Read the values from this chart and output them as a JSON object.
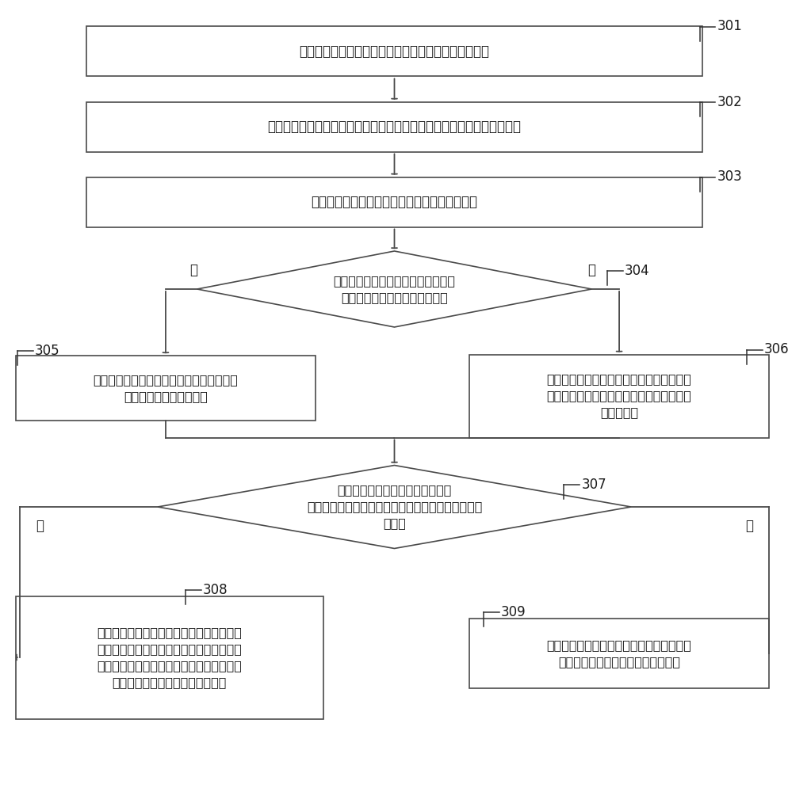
{
  "bg_color": "#ffffff",
  "box_color": "#ffffff",
  "box_edge_color": "#4a4a4a",
  "text_color": "#1a1a1a",
  "arrow_color": "#4a4a4a",
  "node301_text": "第一移动终端以全屏模式或正常显示图片模式显示图片",
  "node302_text": "第一移动终端按照第一设定规则将当前显示的图片分割为至少二个图像块",
  "node303_text": "第一移动终端接收对当前显示的图片的拖动操作",
  "node304_text": "第一移动终端确定拖动操作的速度，\n并判断该速度是否大于设定阈值",
  "node305_text": "第一移动终端将当前显示的图片的全部图像\n信息发送给第二移动终端",
  "node306_text": "第一移动终端根据拖动操作，确定图片中移\n出第一移动终端的显示屏幕的图片移出部分\n的位置坐标",
  "node307_text": "第一移动终端根据所述位置坐标，\n判断当前显示的图片是否完全移出第一移动终端的显\n示屏幕",
  "node308_text": "第一移动终端根据所述位置坐标确定图片移\n出部分所在的图像块；将所述位置坐标、第\n一移动终端的显示屏幕的信息、和所述图像\n块的图像信息发送给第二移动终端",
  "node309_text": "第一移动终端取消图片传输，通知第二移动\n终端销毁已接收到的图片的图像信息",
  "label_yes": "是",
  "label_no": "否",
  "ref301": "301",
  "ref302": "302",
  "ref303": "303",
  "ref304": "304",
  "ref305": "305",
  "ref306": "306",
  "ref307": "307",
  "ref308": "308",
  "ref309": "309"
}
